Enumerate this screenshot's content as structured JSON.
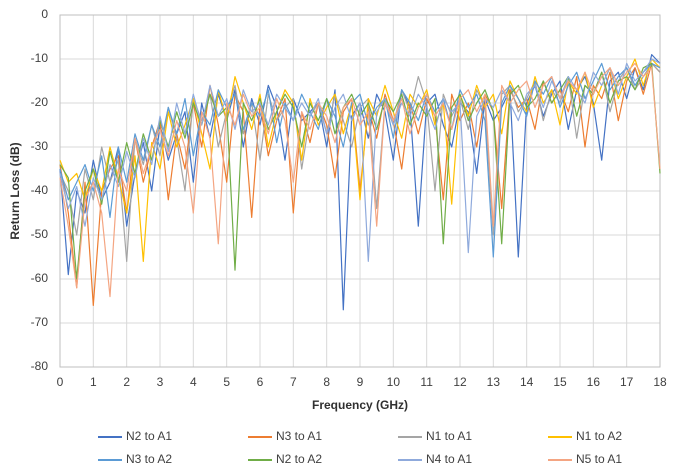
{
  "chart_data": {
    "type": "line",
    "xlabel": "Frequency (GHz)",
    "ylabel": "Return Loss (dB)",
    "xlim": [
      0,
      18
    ],
    "ylim": [
      -80,
      0
    ],
    "xticks": [
      0,
      1,
      2,
      3,
      4,
      5,
      6,
      7,
      8,
      9,
      10,
      11,
      12,
      13,
      14,
      15,
      16,
      17,
      18
    ],
    "yticks": [
      0,
      -10,
      -20,
      -30,
      -40,
      -50,
      -60,
      -70,
      -80
    ],
    "grid": true,
    "legend": "bottom",
    "x": [
      0,
      0.25,
      0.5,
      0.75,
      1,
      1.25,
      1.5,
      1.75,
      2,
      2.25,
      2.5,
      2.75,
      3,
      3.25,
      3.5,
      3.75,
      4,
      4.25,
      4.5,
      4.75,
      5,
      5.25,
      5.5,
      5.75,
      6,
      6.25,
      6.5,
      6.75,
      7,
      7.25,
      7.5,
      7.75,
      8,
      8.25,
      8.5,
      8.75,
      9,
      9.25,
      9.5,
      9.75,
      10,
      10.25,
      10.5,
      10.75,
      11,
      11.25,
      11.5,
      11.75,
      12,
      12.25,
      12.5,
      12.75,
      13,
      13.25,
      13.5,
      13.75,
      14,
      14.25,
      14.5,
      14.75,
      15,
      15.25,
      15.5,
      15.75,
      16,
      16.25,
      16.5,
      16.75,
      17,
      17.25,
      17.5,
      17.75,
      18
    ],
    "series": [
      {
        "name": "N2 to A1",
        "color": "#4472c4",
        "values": [
          -35,
          -59,
          -40,
          -45,
          -33,
          -42,
          -38,
          -30,
          -48,
          -36,
          -29,
          -40,
          -25,
          -33,
          -27,
          -22,
          -38,
          -20,
          -28,
          -18,
          -24,
          -17,
          -30,
          -19,
          -25,
          -16,
          -21,
          -33,
          -19,
          -24,
          -22,
          -20,
          -30,
          -17,
          -67,
          -23,
          -20,
          -28,
          -18,
          -22,
          -33,
          -17,
          -21,
          -48,
          -20,
          -18,
          -25,
          -30,
          -20,
          -22,
          -36,
          -19,
          -24,
          -21,
          -17,
          -55,
          -20,
          -16,
          -23,
          -18,
          -15,
          -26,
          -17,
          -14,
          -20,
          -33,
          -15,
          -13,
          -19,
          -12,
          -17,
          -9,
          -11
        ]
      },
      {
        "name": "N3 to A1",
        "color": "#ed7d31",
        "values": [
          -34,
          -45,
          -62,
          -38,
          -66,
          -40,
          -35,
          -32,
          -45,
          -28,
          -38,
          -30,
          -24,
          -42,
          -27,
          -35,
          -20,
          -30,
          -16,
          -25,
          -38,
          -18,
          -22,
          -46,
          -20,
          -32,
          -24,
          -19,
          -45,
          -22,
          -29,
          -20,
          -25,
          -37,
          -22,
          -19,
          -40,
          -21,
          -28,
          -18,
          -24,
          -35,
          -20,
          -27,
          -19,
          -23,
          -42,
          -18,
          -24,
          -20,
          -30,
          -18,
          -22,
          -44,
          -17,
          -21,
          -19,
          -26,
          -15,
          -20,
          -17,
          -22,
          -14,
          -30,
          -16,
          -19,
          -13,
          -24,
          -15,
          -12,
          -18,
          -11,
          -13
        ]
      },
      {
        "name": "N1 to A1",
        "color": "#a5a5a5",
        "values": [
          -36,
          -40,
          -50,
          -35,
          -42,
          -30,
          -38,
          -33,
          -56,
          -28,
          -34,
          -25,
          -32,
          -21,
          -28,
          -40,
          -19,
          -24,
          -18,
          -30,
          -22,
          -16,
          -27,
          -20,
          -33,
          -18,
          -24,
          -21,
          -19,
          -35,
          -23,
          -20,
          -27,
          -18,
          -24,
          -30,
          -21,
          -19,
          -44,
          -20,
          -25,
          -17,
          -22,
          -14,
          -20,
          -40,
          -18,
          -23,
          -19,
          -26,
          -17,
          -21,
          -50,
          -18,
          -16,
          -22,
          -19,
          -15,
          -24,
          -17,
          -20,
          -14,
          -28,
          -16,
          -18,
          -13,
          -22,
          -15,
          -12,
          -17,
          -14,
          -11,
          -13
        ]
      },
      {
        "name": "N1 to A2",
        "color": "#ffc000",
        "values": [
          -33,
          -38,
          -36,
          -42,
          -35,
          -40,
          -30,
          -37,
          -45,
          -32,
          -56,
          -29,
          -35,
          -22,
          -30,
          -25,
          -19,
          -27,
          -35,
          -17,
          -24,
          -14,
          -20,
          -26,
          -18,
          -30,
          -22,
          -17,
          -20,
          -33,
          -19,
          -25,
          -21,
          -18,
          -27,
          -20,
          -42,
          -19,
          -23,
          -16,
          -22,
          -28,
          -18,
          -21,
          -17,
          -25,
          -20,
          -43,
          -18,
          -23,
          -16,
          -21,
          -18,
          -27,
          -15,
          -19,
          -22,
          -14,
          -20,
          -17,
          -25,
          -15,
          -18,
          -13,
          -21,
          -16,
          -12,
          -19,
          -14,
          -10,
          -16,
          -10,
          -12
        ]
      },
      {
        "name": "N3 to A2",
        "color": "#5b9bd5",
        "values": [
          -35,
          -42,
          -38,
          -34,
          -40,
          -32,
          -46,
          -30,
          -38,
          -27,
          -33,
          -25,
          -30,
          -21,
          -27,
          -19,
          -32,
          -22,
          -25,
          -17,
          -21,
          -18,
          -26,
          -20,
          -23,
          -17,
          -29,
          -20,
          -24,
          -18,
          -22,
          -26,
          -19,
          -23,
          -30,
          -20,
          -18,
          -25,
          -21,
          -19,
          -28,
          -17,
          -20,
          -24,
          -18,
          -22,
          -19,
          -26,
          -17,
          -21,
          -18,
          -24,
          -55,
          -20,
          -16,
          -19,
          -23,
          -15,
          -18,
          -14,
          -21,
          -16,
          -13,
          -19,
          -15,
          -11,
          -17,
          -14,
          -12,
          -16,
          -13,
          -11,
          -12
        ]
      },
      {
        "name": "N2 to A2",
        "color": "#70ad47",
        "values": [
          -34,
          -37,
          -60,
          -40,
          -35,
          -43,
          -31,
          -38,
          -29,
          -36,
          -27,
          -33,
          -24,
          -30,
          -22,
          -28,
          -20,
          -25,
          -18,
          -23,
          -21,
          -58,
          -20,
          -24,
          -19,
          -26,
          -22,
          -18,
          -21,
          -30,
          -20,
          -24,
          -19,
          -27,
          -21,
          -18,
          -23,
          -20,
          -26,
          -19,
          -22,
          -18,
          -25,
          -20,
          -23,
          -19,
          -52,
          -21,
          -18,
          -24,
          -20,
          -17,
          -22,
          -52,
          -18,
          -16,
          -21,
          -19,
          -15,
          -20,
          -17,
          -14,
          -23,
          -16,
          -18,
          -13,
          -20,
          -15,
          -14,
          -17,
          -12,
          -11,
          -36
        ]
      },
      {
        "name": "N4 to A1",
        "color": "#8faadc",
        "values": [
          -36,
          -44,
          -39,
          -48,
          -37,
          -42,
          -34,
          -39,
          -31,
          -37,
          -28,
          -34,
          -23,
          -31,
          -20,
          -27,
          -18,
          -25,
          -16,
          -23,
          -19,
          -26,
          -17,
          -22,
          -20,
          -25,
          -18,
          -21,
          -24,
          -20,
          -23,
          -19,
          -27,
          -21,
          -18,
          -24,
          -20,
          -56,
          -22,
          -19,
          -25,
          -20,
          -23,
          -18,
          -21,
          -26,
          -19,
          -22,
          -20,
          -54,
          -23,
          -19,
          -21,
          -17,
          -20,
          -24,
          -18,
          -16,
          -21,
          -15,
          -19,
          -14,
          -17,
          -20,
          -13,
          -16,
          -12,
          -18,
          -11,
          -15,
          -13,
          -10,
          -11
        ]
      },
      {
        "name": "N5 to A1",
        "color": "#f4a582",
        "values": [
          -37,
          -48,
          -62,
          -42,
          -38,
          -45,
          -64,
          -35,
          -40,
          -28,
          -36,
          -30,
          -26,
          -32,
          -24,
          -30,
          -45,
          -22,
          -28,
          -52,
          -20,
          -25,
          -18,
          -23,
          -21,
          -27,
          -19,
          -24,
          -38,
          -22,
          -26,
          -20,
          -23,
          -29,
          -21,
          -19,
          -25,
          -22,
          -48,
          -20,
          -24,
          -19,
          -27,
          -21,
          -18,
          -23,
          -20,
          -26,
          -19,
          -17,
          -22,
          -18,
          -48,
          -16,
          -20,
          -17,
          -15,
          -21,
          -16,
          -14,
          -19,
          -15,
          -17,
          -13,
          -18,
          -14,
          -12,
          -16,
          -13,
          -11,
          -14,
          -12,
          -35
        ]
      }
    ]
  }
}
